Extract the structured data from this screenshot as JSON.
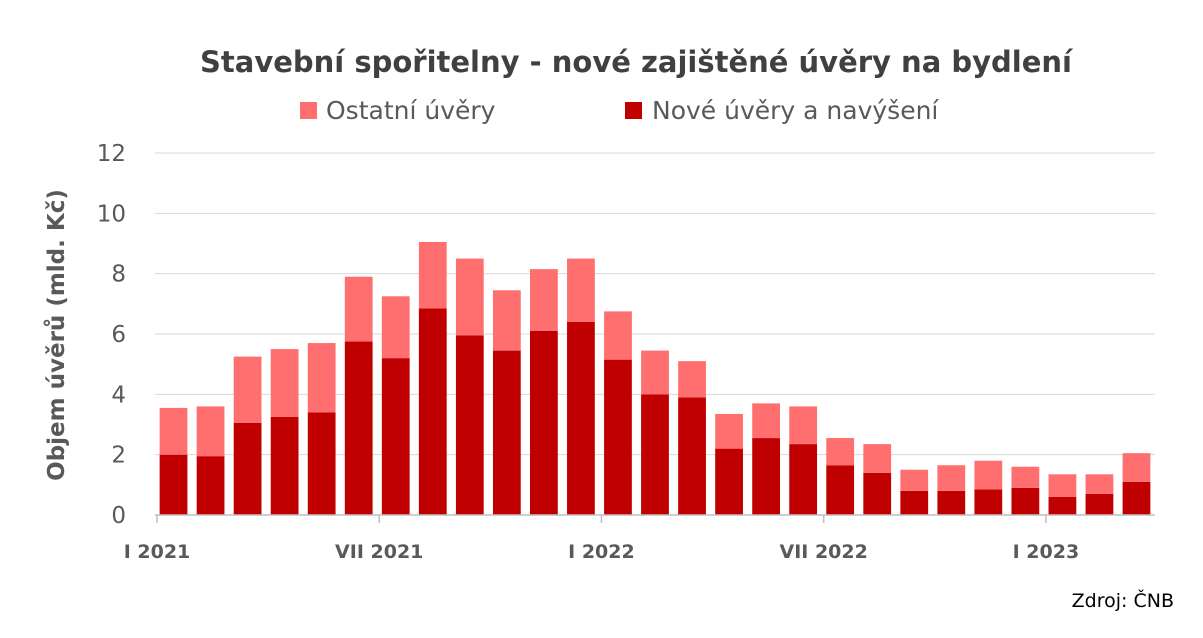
{
  "chart_data": {
    "type": "bar",
    "stacked": true,
    "title": "Stavební spořitelny - nové zajištěné úvěry na bydlení",
    "xlabel": "",
    "ylabel": "Objem úvěrů (mld. Kč)",
    "source": "Zdroj: ČNB",
    "ylim": [
      0,
      12
    ],
    "yticks": [
      0,
      2,
      4,
      6,
      8,
      10,
      12
    ],
    "grid": true,
    "legend_position": "top",
    "x_tick_labels": [
      {
        "index": 0,
        "label": "I 2021"
      },
      {
        "index": 6,
        "label": "VII 2021"
      },
      {
        "index": 12,
        "label": "I 2022"
      },
      {
        "index": 18,
        "label": "VII 2022"
      },
      {
        "index": 24,
        "label": "I 2023"
      }
    ],
    "categories": [
      "1",
      "2",
      "3",
      "4",
      "5",
      "6",
      "7",
      "8",
      "9",
      "10",
      "11",
      "12",
      "13",
      "14",
      "15",
      "16",
      "17",
      "18",
      "19",
      "20",
      "21",
      "22",
      "23",
      "24",
      "25",
      "26",
      "27"
    ],
    "series": [
      {
        "name": "Nové úvěry a navýšení",
        "color": "#c00000",
        "values": [
          2.0,
          1.95,
          3.05,
          3.25,
          3.4,
          5.75,
          5.2,
          6.85,
          5.95,
          5.45,
          6.1,
          6.4,
          5.15,
          4.0,
          3.9,
          2.2,
          2.55,
          2.35,
          1.65,
          1.4,
          0.8,
          0.8,
          0.85,
          0.9,
          0.6,
          0.7,
          1.1
        ]
      },
      {
        "name": "Ostatní úvěry",
        "color": "#ff6f6f",
        "values": [
          1.55,
          1.65,
          2.2,
          2.25,
          2.3,
          2.15,
          2.05,
          2.2,
          2.55,
          2.0,
          2.05,
          2.1,
          1.6,
          1.45,
          1.2,
          1.15,
          1.15,
          1.25,
          0.9,
          0.95,
          0.7,
          0.85,
          0.95,
          0.7,
          0.75,
          0.65,
          0.95
        ]
      }
    ]
  }
}
